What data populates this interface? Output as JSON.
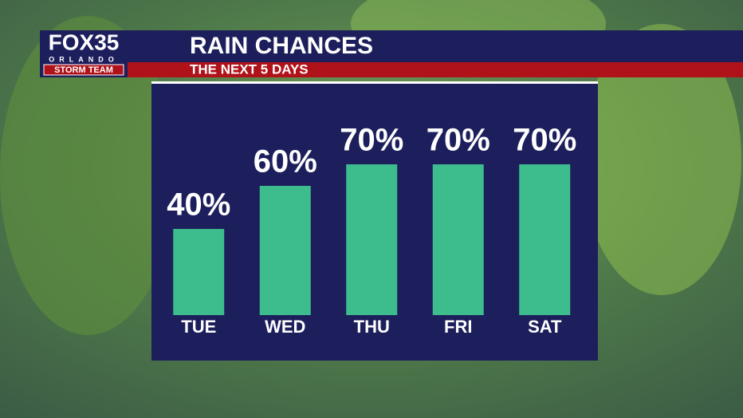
{
  "logo": {
    "brand": "FOX35",
    "city": "ORLANDO",
    "team": "STORM TEAM"
  },
  "chart_data": {
    "type": "bar",
    "title": "RAIN CHANCES",
    "subtitle": "THE NEXT 5 DAYS",
    "categories": [
      "TUE",
      "WED",
      "THU",
      "FRI",
      "SAT"
    ],
    "values": [
      40,
      60,
      70,
      70,
      70
    ],
    "value_labels": [
      "40%",
      "60%",
      "70%",
      "70%",
      "70%"
    ],
    "color": "#3dbd8e"
  }
}
